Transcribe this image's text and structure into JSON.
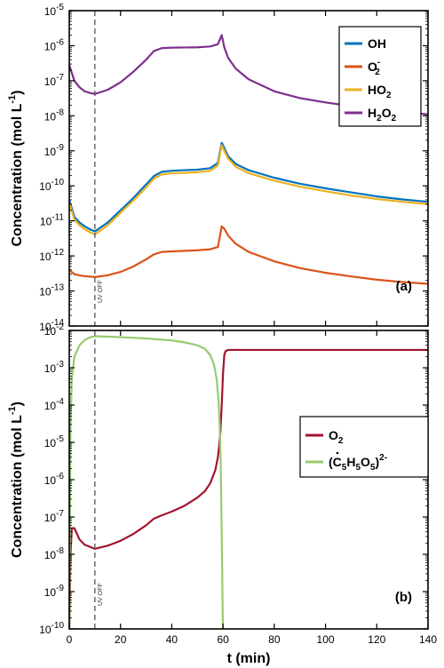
{
  "chart_data": [
    {
      "id": "a",
      "type": "line",
      "panel_label": "(a)",
      "ylabel": "Concentration (mol L-1)",
      "yscale": "log",
      "xlim": [
        0,
        140
      ],
      "ylim": [
        1e-14,
        1e-05
      ],
      "grid": false,
      "legend": "top-right",
      "y_ticks": [
        {
          "value": 1e-14,
          "base": "10",
          "exp": "-14"
        },
        {
          "value": 1e-13,
          "base": "10",
          "exp": "-13"
        },
        {
          "value": 1e-12,
          "base": "10",
          "exp": "-12"
        },
        {
          "value": 1e-11,
          "base": "10",
          "exp": "-11"
        },
        {
          "value": 1e-10,
          "base": "10",
          "exp": "-10"
        },
        {
          "value": 1e-09,
          "base": "10",
          "exp": "-9"
        },
        {
          "value": 1e-08,
          "base": "10",
          "exp": "-8"
        },
        {
          "value": 1e-07,
          "base": "10",
          "exp": "-7"
        },
        {
          "value": 1e-06,
          "base": "10",
          "exp": "-6"
        },
        {
          "value": 1e-05,
          "base": "10",
          "exp": "-5"
        }
      ],
      "annotation": {
        "text": "UV OFF",
        "x": 10
      },
      "series": [
        {
          "name": "OH",
          "color": "#0072BD",
          "x": [
            0,
            2,
            4,
            6,
            8,
            10,
            15,
            20,
            25,
            30,
            33,
            36,
            40,
            45,
            50,
            55,
            58,
            59.5,
            60.5,
            62,
            65,
            70,
            80,
            90,
            100,
            110,
            120,
            130,
            140
          ],
          "y": [
            4e-11,
            1.3e-11,
            9e-12,
            7e-12,
            5.8e-12,
            5e-12,
            9e-12,
            2e-11,
            4.5e-11,
            1.1e-10,
            1.9e-10,
            2.5e-10,
            2.7e-10,
            2.8e-10,
            2.9e-10,
            3.2e-10,
            4.5e-10,
            1.7e-09,
            1.2e-09,
            7e-10,
            4.2e-10,
            2.8e-10,
            1.7e-10,
            1.15e-10,
            8.5e-11,
            6.5e-11,
            5e-11,
            4.1e-11,
            3.5e-11
          ]
        },
        {
          "name": "O2-",
          "label_base": "O",
          "label_sub": "2",
          "label_sup": "-",
          "color": "#D95319",
          "x": [
            0,
            2,
            5,
            10,
            15,
            20,
            25,
            30,
            33,
            36,
            40,
            45,
            50,
            55,
            58,
            59.5,
            60.5,
            62,
            65,
            70,
            80,
            90,
            100,
            110,
            120,
            130,
            140
          ],
          "y": [
            4e-13,
            3e-13,
            2.7e-13,
            2.5e-13,
            2.8e-13,
            3.5e-13,
            5e-13,
            8e-13,
            1.1e-12,
            1.3e-12,
            1.35e-12,
            1.4e-12,
            1.45e-12,
            1.55e-12,
            1.8e-12,
            7e-12,
            6e-12,
            3.8e-12,
            2.2e-12,
            1.3e-12,
            7e-13,
            4.5e-13,
            3.3e-13,
            2.6e-13,
            2.1e-13,
            1.8e-13,
            1.6e-13
          ]
        },
        {
          "name": "HO2",
          "label_base": "HO",
          "label_sub": "2",
          "color": "#EDB120",
          "x": [
            0,
            2,
            4,
            6,
            8,
            10,
            15,
            20,
            25,
            30,
            33,
            36,
            40,
            45,
            50,
            55,
            58,
            59.5,
            60.5,
            62,
            65,
            70,
            80,
            90,
            100,
            110,
            120,
            130,
            140
          ],
          "y": [
            3.3e-11,
            1.1e-11,
            7.5e-12,
            5.8e-12,
            4.8e-12,
            4.1e-12,
            7.5e-12,
            1.7e-11,
            3.8e-11,
            9e-11,
            1.6e-10,
            2.1e-10,
            2.3e-10,
            2.35e-10,
            2.45e-10,
            2.7e-10,
            3.8e-10,
            1.45e-09,
            1e-09,
            6e-10,
            3.5e-10,
            2.3e-10,
            1.4e-10,
            9.5e-11,
            7e-11,
            5.3e-11,
            4.2e-11,
            3.5e-11,
            3e-11
          ]
        },
        {
          "name": "H2O2",
          "label_base": "H",
          "label_sub": "2",
          "label_base2": "O",
          "label_sub2": "2",
          "color": "#7E2F8E",
          "x": [
            0,
            2,
            4,
            6,
            8,
            10,
            15,
            20,
            25,
            30,
            33,
            36,
            40,
            45,
            50,
            55,
            58,
            59.5,
            60.5,
            62,
            65,
            70,
            80,
            90,
            100,
            110,
            120,
            130,
            140
          ],
          "y": [
            2.8e-07,
            1e-07,
            6.5e-08,
            5e-08,
            4.5e-08,
            4.2e-08,
            5.5e-08,
            9e-08,
            1.8e-07,
            4e-07,
            7e-07,
            8.5e-07,
            8.8e-07,
            8.9e-07,
            9e-07,
            9.5e-07,
            1.1e-06,
            2e-06,
            9e-07,
            4.5e-07,
            2.2e-07,
            1.1e-07,
            5e-08,
            3.2e-08,
            2.4e-08,
            1.9e-08,
            1.55e-08,
            1.3e-08,
            1.1e-08
          ]
        }
      ]
    },
    {
      "id": "b",
      "type": "line",
      "panel_label": "(b)",
      "ylabel": "Concentration (mol L-1)",
      "xlabel": "t (min)",
      "yscale": "log",
      "xlim": [
        0,
        140
      ],
      "ylim": [
        1e-10,
        0.01
      ],
      "grid": false,
      "legend": "right",
      "x_ticks": [
        "0",
        "20",
        "40",
        "60",
        "80",
        "100",
        "120",
        "140"
      ],
      "y_ticks": [
        {
          "value": 1e-10,
          "base": "10",
          "exp": "-10"
        },
        {
          "value": 1e-09,
          "base": "10",
          "exp": "-9"
        },
        {
          "value": 1e-08,
          "base": "10",
          "exp": "-8"
        },
        {
          "value": 1e-07,
          "base": "10",
          "exp": "-7"
        },
        {
          "value": 1e-06,
          "base": "10",
          "exp": "-6"
        },
        {
          "value": 1e-05,
          "base": "10",
          "exp": "-5"
        },
        {
          "value": 0.0001,
          "base": "10",
          "exp": "-4"
        },
        {
          "value": 0.001,
          "base": "10",
          "exp": "-3"
        },
        {
          "value": 0.01,
          "base": "10",
          "exp": "-2"
        }
      ],
      "annotation": {
        "text": "UV OFF",
        "x": 10
      },
      "series": [
        {
          "name": "O2",
          "label_base": "O",
          "label_sub": "2",
          "color": "#A2142F",
          "x": [
            0,
            0.5,
            1,
            2,
            4,
            6,
            8,
            10,
            15,
            20,
            25,
            30,
            33,
            36,
            40,
            45,
            50,
            53,
            55,
            57,
            58,
            58.5,
            59,
            59.5,
            60,
            60.5,
            61,
            62,
            65,
            70,
            80,
            90,
            100,
            110,
            120,
            130,
            140
          ],
          "y": [
            1e-10,
            1e-08,
            5e-08,
            5e-08,
            2.5e-08,
            1.8e-08,
            1.6e-08,
            1.4e-08,
            1.7e-08,
            2.3e-08,
            3.5e-08,
            6e-08,
            9e-08,
            1.1e-07,
            1.4e-07,
            2e-07,
            3.3e-07,
            5e-07,
            8e-07,
            1.8e-06,
            4e-06,
            8e-06,
            2e-05,
            0.0001,
            0.0007,
            0.0022,
            0.0028,
            0.003,
            0.003,
            0.003,
            0.003,
            0.003,
            0.003,
            0.003,
            0.003,
            0.003,
            0.003
          ]
        },
        {
          "name": "(C5H5O5)2-",
          "color": "#97CB6E",
          "x": [
            0,
            0.5,
            1,
            2,
            4,
            6,
            8,
            10,
            15,
            20,
            30,
            40,
            45,
            50,
            53,
            55,
            56.5,
            57.5,
            58.2,
            58.7,
            59.1,
            59.4,
            59.7,
            59.85,
            60
          ],
          "y": [
            1e-10,
            3e-05,
            0.0005,
            0.002,
            0.004,
            0.0055,
            0.0065,
            0.007,
            0.0068,
            0.0066,
            0.0061,
            0.0054,
            0.0048,
            0.004,
            0.0032,
            0.0022,
            0.0012,
            0.0005,
            0.00015,
            3e-05,
            3e-06,
            1e-07,
            3e-09,
            3e-10,
            1e-10
          ]
        }
      ]
    }
  ]
}
